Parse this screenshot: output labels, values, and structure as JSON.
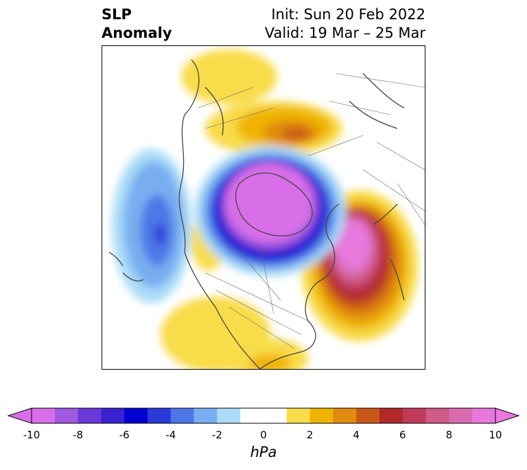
{
  "title": {
    "left_line1": "SLP",
    "left_line2": "Anomaly",
    "right_line1": "Init: Sun 20 Feb 2022",
    "right_line2": "Valid: 19 Mar – 25 Mar"
  },
  "colorbar": {
    "min": -10,
    "max": 10,
    "step": 1,
    "ticks": [
      "-10",
      "-8",
      "-6",
      "-4",
      "-2",
      "0",
      "2",
      "4",
      "6",
      "8",
      "10"
    ],
    "units": "hPa",
    "colors": [
      "#d86ee8",
      "#a05ae0",
      "#6a3ad8",
      "#3a22d2",
      "#0000d0",
      "#2a3ad8",
      "#4e78e8",
      "#78aef0",
      "#aadcf8",
      "#ffffff",
      "#ffffff",
      "#f8dc4a",
      "#f0b400",
      "#e08a10",
      "#c85818",
      "#b0282a",
      "#c03a5a",
      "#d05a88",
      "#d86aae",
      "#e878dc"
    ]
  }
}
